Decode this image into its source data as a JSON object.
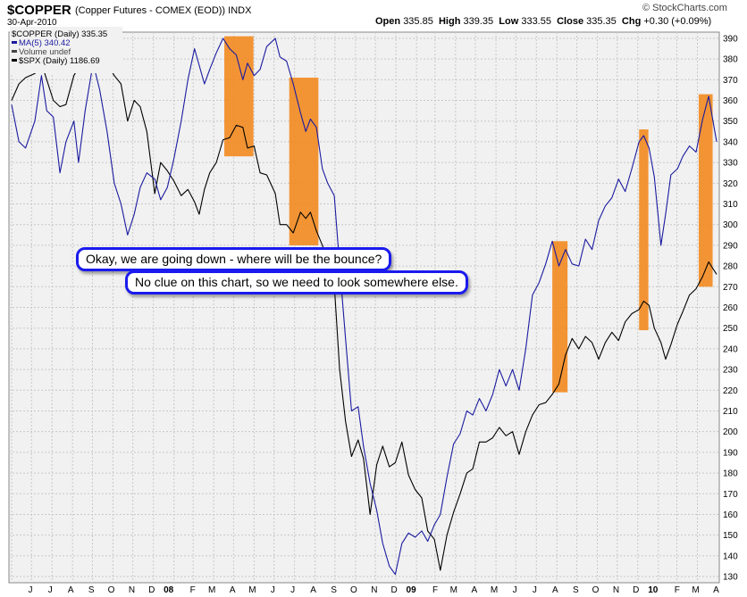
{
  "header": {
    "ticker": "$COPPER",
    "description": "(Copper Futures - COMEX (EOD))",
    "exchange": "INDX",
    "date": "30-Apr-2010",
    "open_label": "Open",
    "open": "335.85",
    "high_label": "High",
    "high": "339.35",
    "low_label": "Low",
    "low": "333.55",
    "close_label": "Close",
    "close": "335.35",
    "chg_label": "Chg",
    "chg": "+0.30 (+0.09%)",
    "brand": "© StockCharts.com"
  },
  "legend": [
    {
      "text": "$COPPER (Daily) 335.35",
      "color": "#000000"
    },
    {
      "text": "MA(5) 340.42",
      "color": "#1a1aa0"
    },
    {
      "text": "Volume undef",
      "color": "#444444"
    },
    {
      "text": "$SPX (Daily) 1186.69",
      "color": "#000000"
    }
  ],
  "annotations": {
    "callout1": "Okay, we are going down - where will be the bounce?",
    "callout2": "No clue on this chart, so we need to look somewhere else."
  },
  "colors": {
    "ma_line": "#1a1aa0",
    "spx_line": "#000000",
    "highlight": "#f28a1f",
    "callout_border": "#1a1aee",
    "plot_bg": "#f1f1f1",
    "grid": "#c8c8c8"
  },
  "chart_data": {
    "type": "line",
    "grid": true,
    "y_axis_position": "right",
    "ylim": [
      127,
      393
    ],
    "y_ticks": [
      130,
      140,
      150,
      160,
      170,
      180,
      190,
      200,
      210,
      220,
      230,
      240,
      250,
      260,
      270,
      280,
      290,
      300,
      310,
      320,
      330,
      340,
      350,
      360,
      370,
      380,
      390
    ],
    "x_tick_labels": [
      "J",
      "J",
      "A",
      "S",
      "O",
      "N",
      "D",
      "08",
      "F",
      "M",
      "A",
      "M",
      "J",
      "J",
      "A",
      "S",
      "O",
      "N",
      "D",
      "09",
      "F",
      "M",
      "A",
      "M",
      "J",
      "J",
      "A",
      "S",
      "O",
      "N",
      "D",
      "10",
      "F",
      "M",
      "A"
    ],
    "x_range": [
      "2007-06-01",
      "2010-04-30"
    ],
    "series": [
      {
        "name": "MA(5) 340.42",
        "color": "#1a1aa0",
        "points": [
          [
            "2007-06-01",
            358
          ],
          [
            "2007-06-12",
            340
          ],
          [
            "2007-06-22",
            337
          ],
          [
            "2007-07-06",
            350
          ],
          [
            "2007-07-16",
            372
          ],
          [
            "2007-07-24",
            355
          ],
          [
            "2007-08-03",
            352
          ],
          [
            "2007-08-13",
            325
          ],
          [
            "2007-08-22",
            340
          ],
          [
            "2007-09-03",
            350
          ],
          [
            "2007-09-10",
            330
          ],
          [
            "2007-09-20",
            355
          ],
          [
            "2007-10-02",
            378
          ],
          [
            "2007-10-12",
            365
          ],
          [
            "2007-10-23",
            345
          ],
          [
            "2007-11-03",
            320
          ],
          [
            "2007-11-13",
            310
          ],
          [
            "2007-11-23",
            295
          ],
          [
            "2007-12-03",
            305
          ],
          [
            "2007-12-12",
            318
          ],
          [
            "2007-12-22",
            325
          ],
          [
            "2008-01-03",
            322
          ],
          [
            "2008-01-12",
            312
          ],
          [
            "2008-01-22",
            318
          ],
          [
            "2008-02-01",
            332
          ],
          [
            "2008-02-12",
            350
          ],
          [
            "2008-02-22",
            370
          ],
          [
            "2008-03-03",
            385
          ],
          [
            "2008-03-10",
            377
          ],
          [
            "2008-03-18",
            368
          ],
          [
            "2008-03-26",
            375
          ],
          [
            "2008-04-05",
            383
          ],
          [
            "2008-04-15",
            390
          ],
          [
            "2008-04-25",
            385
          ],
          [
            "2008-05-05",
            382
          ],
          [
            "2008-05-15",
            370
          ],
          [
            "2008-05-22",
            378
          ],
          [
            "2008-06-01",
            372
          ],
          [
            "2008-06-10",
            375
          ],
          [
            "2008-06-20",
            386
          ],
          [
            "2008-07-03",
            390
          ],
          [
            "2008-07-10",
            381
          ],
          [
            "2008-07-20",
            379
          ],
          [
            "2008-07-30",
            368
          ],
          [
            "2008-08-10",
            354
          ],
          [
            "2008-08-18",
            345
          ],
          [
            "2008-08-25",
            351
          ],
          [
            "2008-09-03",
            347
          ],
          [
            "2008-09-12",
            327
          ],
          [
            "2008-09-20",
            320
          ],
          [
            "2008-09-30",
            314
          ],
          [
            "2008-10-08",
            280
          ],
          [
            "2008-10-17",
            245
          ],
          [
            "2008-10-26",
            210
          ],
          [
            "2008-11-05",
            212
          ],
          [
            "2008-11-13",
            193
          ],
          [
            "2008-11-23",
            175
          ],
          [
            "2008-12-03",
            162
          ],
          [
            "2008-12-12",
            146
          ],
          [
            "2008-12-22",
            135
          ],
          [
            "2008-12-31",
            131
          ],
          [
            "2009-01-10",
            146
          ],
          [
            "2009-01-20",
            151
          ],
          [
            "2009-01-30",
            149
          ],
          [
            "2009-02-09",
            152
          ],
          [
            "2009-02-18",
            147
          ],
          [
            "2009-02-28",
            155
          ],
          [
            "2009-03-09",
            160
          ],
          [
            "2009-03-19",
            178
          ],
          [
            "2009-03-29",
            194
          ],
          [
            "2009-04-08",
            199
          ],
          [
            "2009-04-18",
            210
          ],
          [
            "2009-04-27",
            208
          ],
          [
            "2009-05-07",
            216
          ],
          [
            "2009-05-17",
            210
          ],
          [
            "2009-05-27",
            218
          ],
          [
            "2009-06-06",
            230
          ],
          [
            "2009-06-16",
            222
          ],
          [
            "2009-06-26",
            230
          ],
          [
            "2009-07-06",
            220
          ],
          [
            "2009-07-16",
            240
          ],
          [
            "2009-07-26",
            266
          ],
          [
            "2009-08-05",
            272
          ],
          [
            "2009-08-15",
            281
          ],
          [
            "2009-08-25",
            292
          ],
          [
            "2009-09-04",
            280
          ],
          [
            "2009-09-14",
            288
          ],
          [
            "2009-09-24",
            281
          ],
          [
            "2009-10-04",
            280
          ],
          [
            "2009-10-14",
            293
          ],
          [
            "2009-10-24",
            288
          ],
          [
            "2009-11-03",
            302
          ],
          [
            "2009-11-13",
            309
          ],
          [
            "2009-11-23",
            313
          ],
          [
            "2009-12-03",
            322
          ],
          [
            "2009-12-13",
            316
          ],
          [
            "2009-12-23",
            327
          ],
          [
            "2010-01-03",
            340
          ],
          [
            "2010-01-10",
            343
          ],
          [
            "2010-01-18",
            337
          ],
          [
            "2010-01-26",
            323
          ],
          [
            "2010-02-05",
            290
          ],
          [
            "2010-02-12",
            305
          ],
          [
            "2010-02-20",
            324
          ],
          [
            "2010-03-02",
            327
          ],
          [
            "2010-03-10",
            333
          ],
          [
            "2010-03-20",
            338
          ],
          [
            "2010-03-30",
            335
          ],
          [
            "2010-04-09",
            351
          ],
          [
            "2010-04-18",
            362
          ],
          [
            "2010-04-30",
            340
          ]
        ]
      },
      {
        "name": "$SPX (Daily) 1186.69",
        "color": "#000000",
        "points": [
          [
            "2007-06-01",
            360
          ],
          [
            "2007-06-12",
            368
          ],
          [
            "2007-06-22",
            371
          ],
          [
            "2007-07-06",
            373
          ],
          [
            "2007-07-16",
            378
          ],
          [
            "2007-07-24",
            370
          ],
          [
            "2007-08-03",
            360
          ],
          [
            "2007-08-13",
            357
          ],
          [
            "2007-08-22",
            358
          ],
          [
            "2007-09-03",
            372
          ],
          [
            "2007-09-10",
            376
          ],
          [
            "2007-09-20",
            381
          ],
          [
            "2007-10-02",
            382
          ],
          [
            "2007-10-12",
            391
          ],
          [
            "2007-10-23",
            378
          ],
          [
            "2007-11-03",
            372
          ],
          [
            "2007-11-13",
            368
          ],
          [
            "2007-11-23",
            350
          ],
          [
            "2007-12-03",
            360
          ],
          [
            "2007-12-12",
            357
          ],
          [
            "2007-12-22",
            345
          ],
          [
            "2008-01-03",
            315
          ],
          [
            "2008-01-12",
            330
          ],
          [
            "2008-01-22",
            326
          ],
          [
            "2008-02-01",
            321
          ],
          [
            "2008-02-12",
            314
          ],
          [
            "2008-02-22",
            317
          ],
          [
            "2008-03-03",
            311
          ],
          [
            "2008-03-10",
            305
          ],
          [
            "2008-03-18",
            317
          ],
          [
            "2008-03-26",
            325
          ],
          [
            "2008-04-05",
            330
          ],
          [
            "2008-04-15",
            341
          ],
          [
            "2008-04-25",
            342
          ],
          [
            "2008-05-05",
            348
          ],
          [
            "2008-05-15",
            347
          ],
          [
            "2008-05-22",
            337
          ],
          [
            "2008-06-01",
            338
          ],
          [
            "2008-06-10",
            325
          ],
          [
            "2008-06-20",
            324
          ],
          [
            "2008-07-03",
            315
          ],
          [
            "2008-07-10",
            300
          ],
          [
            "2008-07-20",
            300
          ],
          [
            "2008-07-30",
            296
          ],
          [
            "2008-08-10",
            306
          ],
          [
            "2008-08-18",
            303
          ],
          [
            "2008-08-25",
            306
          ],
          [
            "2008-09-03",
            297
          ],
          [
            "2008-09-12",
            290
          ],
          [
            "2008-09-20",
            282
          ],
          [
            "2008-09-30",
            271
          ],
          [
            "2008-10-08",
            230
          ],
          [
            "2008-10-17",
            205
          ],
          [
            "2008-10-26",
            188
          ],
          [
            "2008-11-05",
            196
          ],
          [
            "2008-11-13",
            187
          ],
          [
            "2008-11-23",
            160
          ],
          [
            "2008-12-03",
            184
          ],
          [
            "2008-12-12",
            193
          ],
          [
            "2008-12-22",
            183
          ],
          [
            "2008-12-31",
            185
          ],
          [
            "2009-01-10",
            195
          ],
          [
            "2009-01-20",
            179
          ],
          [
            "2009-01-30",
            172
          ],
          [
            "2009-02-09",
            168
          ],
          [
            "2009-02-18",
            152
          ],
          [
            "2009-02-28",
            148
          ],
          [
            "2009-03-09",
            133
          ],
          [
            "2009-03-19",
            150
          ],
          [
            "2009-03-29",
            161
          ],
          [
            "2009-04-08",
            170
          ],
          [
            "2009-04-18",
            180
          ],
          [
            "2009-04-27",
            182
          ],
          [
            "2009-05-07",
            195
          ],
          [
            "2009-05-17",
            195
          ],
          [
            "2009-05-27",
            197
          ],
          [
            "2009-06-06",
            202
          ],
          [
            "2009-06-16",
            198
          ],
          [
            "2009-06-26",
            200
          ],
          [
            "2009-07-06",
            189
          ],
          [
            "2009-07-16",
            200
          ],
          [
            "2009-07-26",
            208
          ],
          [
            "2009-08-05",
            213
          ],
          [
            "2009-08-15",
            214
          ],
          [
            "2009-08-25",
            218
          ],
          [
            "2009-09-04",
            223
          ],
          [
            "2009-09-14",
            237
          ],
          [
            "2009-09-24",
            245
          ],
          [
            "2009-10-04",
            240
          ],
          [
            "2009-10-14",
            246
          ],
          [
            "2009-10-24",
            243
          ],
          [
            "2009-11-03",
            235
          ],
          [
            "2009-11-13",
            243
          ],
          [
            "2009-11-23",
            248
          ],
          [
            "2009-12-03",
            244
          ],
          [
            "2009-12-13",
            253
          ],
          [
            "2009-12-23",
            257
          ],
          [
            "2010-01-03",
            259
          ],
          [
            "2010-01-10",
            263
          ],
          [
            "2010-01-18",
            261
          ],
          [
            "2010-01-26",
            250
          ],
          [
            "2010-02-05",
            243
          ],
          [
            "2010-02-12",
            235
          ],
          [
            "2010-02-20",
            242
          ],
          [
            "2010-03-02",
            252
          ],
          [
            "2010-03-10",
            258
          ],
          [
            "2010-03-20",
            266
          ],
          [
            "2010-03-30",
            269
          ],
          [
            "2010-04-09",
            275
          ],
          [
            "2010-04-18",
            282
          ],
          [
            "2010-04-30",
            276
          ]
        ]
      }
    ],
    "highlight_ranges": [
      {
        "x": [
          "2008-04-17",
          "2008-05-31"
        ],
        "y": [
          333,
          391
        ]
      },
      {
        "x": [
          "2008-07-24",
          "2008-09-06"
        ],
        "y": [
          290,
          371
        ]
      },
      {
        "x": [
          "2009-08-25",
          "2009-09-17"
        ],
        "y": [
          219,
          292
        ]
      },
      {
        "x": [
          "2010-01-03",
          "2010-01-17"
        ],
        "y": [
          249,
          346
        ]
      },
      {
        "x": [
          "2010-04-03",
          "2010-04-24"
        ],
        "y": [
          270,
          363
        ]
      }
    ]
  }
}
